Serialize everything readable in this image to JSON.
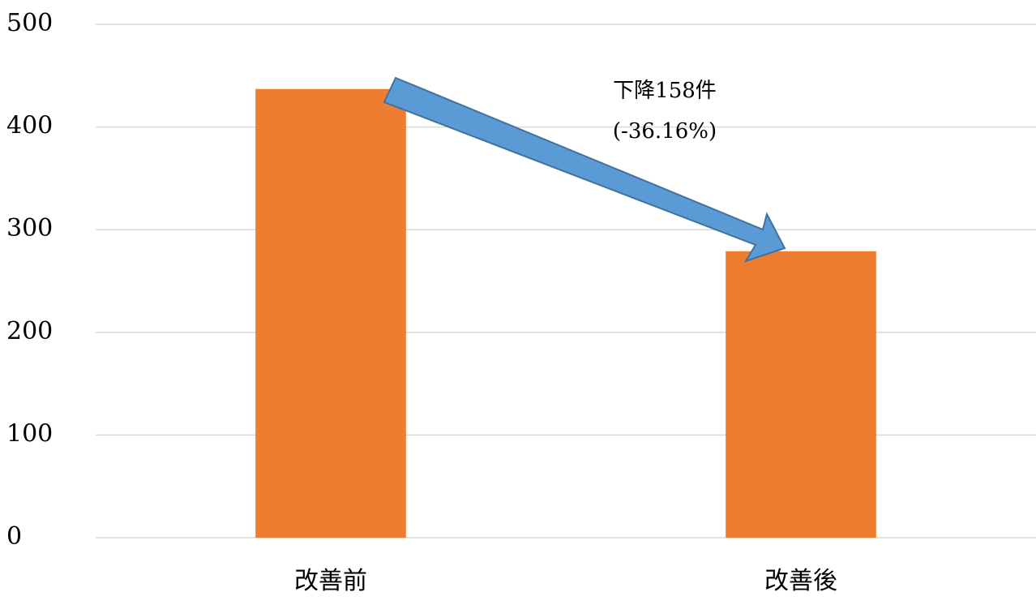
{
  "chart_data": {
    "type": "bar",
    "categories": [
      "改善前",
      "改善後"
    ],
    "values": [
      437,
      279
    ],
    "color": "#ed7d31",
    "ylim": [
      0,
      500
    ],
    "yticks": [
      0,
      100,
      200,
      300,
      400,
      500
    ],
    "grid": true,
    "annotations": [
      "下降158件",
      "(-36.16%)"
    ]
  }
}
